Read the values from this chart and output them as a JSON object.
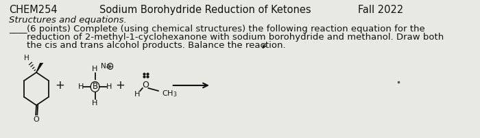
{
  "background_color": "#e8e8e4",
  "header_left": "CHEM254",
  "header_center": "Sodium Borohydride Reduction of Ketones",
  "header_right": "Fall 2022",
  "header_fontsize": 10.5,
  "section_title": "Structures and equations.",
  "blank_text": "____",
  "body_text_line1": "(6 points) Complete (using chemical structures) the following reaction equation for the",
  "body_text_line2": "reduction of 2-methyl-1-cyclohexanone with sodium borohydride and methanol. Draw both",
  "body_text_line3": "the cis and trans alcohol products. Balance the reaction.",
  "body_fontsize": 9.5,
  "text_color": "#111111"
}
